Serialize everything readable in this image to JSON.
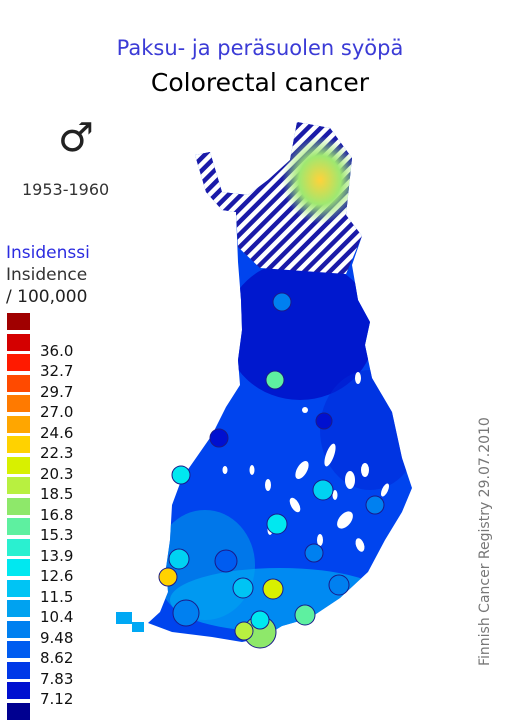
{
  "titles": {
    "finnish": "Paksu- ja peräsuolen syöpä",
    "english": "Colorectal cancer"
  },
  "sex_symbol": "♂",
  "period": "1953-1960",
  "legend": {
    "title_fi": "Insidenssi",
    "title_en": "Insidence",
    "unit": "/ 100,000",
    "bins": [
      {
        "color": "#a00000",
        "label": ""
      },
      {
        "color": "#d40000",
        "label": "36.0"
      },
      {
        "color": "#ff1a00",
        "label": "32.7"
      },
      {
        "color": "#ff4a00",
        "label": "29.7"
      },
      {
        "color": "#ff7a00",
        "label": "27.0"
      },
      {
        "color": "#ffa600",
        "label": "24.6"
      },
      {
        "color": "#ffd200",
        "label": "22.3"
      },
      {
        "color": "#d8f000",
        "label": "20.3"
      },
      {
        "color": "#b8f040",
        "label": "18.5"
      },
      {
        "color": "#8ee86a",
        "label": "16.8"
      },
      {
        "color": "#5ef0a0",
        "label": "15.3"
      },
      {
        "color": "#2af0d0",
        "label": "13.9"
      },
      {
        "color": "#00e8f0",
        "label": "12.6"
      },
      {
        "color": "#00c4f4",
        "label": "11.5"
      },
      {
        "color": "#00a2f0",
        "label": "10.4"
      },
      {
        "color": "#0080f0",
        "label": "9.48"
      },
      {
        "color": "#005cf0",
        "label": "8.62"
      },
      {
        "color": "#0038e8",
        "label": "7.83"
      },
      {
        "color": "#0010d0",
        "label": "7.12"
      },
      {
        "color": "#000090",
        "label": ""
      }
    ]
  },
  "map": {
    "base_color": "#0044ee",
    "region_colors": {
      "north_interior": "#0010c8",
      "east_interior": "#0028d8",
      "south_coast": "#00a8f4",
      "southwest": "#009ae8",
      "lapland_hatch": "#1a1aa8",
      "hotspot_outer": "#9fe870",
      "hotspot_inner": "#ffd23a"
    },
    "cities": [
      {
        "color": "#0080f0"
      },
      {
        "color": "#5ef0a0"
      },
      {
        "color": "#0010d0"
      },
      {
        "color": "#0010d0"
      },
      {
        "color": "#00e8f0"
      },
      {
        "color": "#00d2f2"
      },
      {
        "color": "#00e8f0"
      },
      {
        "color": "#0080f0"
      },
      {
        "color": "#00d2f2"
      },
      {
        "color": "#005cf0"
      },
      {
        "color": "#0080f0"
      },
      {
        "color": "#ffd200"
      },
      {
        "color": "#0080f0"
      },
      {
        "color": "#00c4f4"
      },
      {
        "color": "#d8f000"
      },
      {
        "color": "#5ef0a0"
      },
      {
        "color": "#8ee86a"
      },
      {
        "color": "#0080f0"
      },
      {
        "color": "#00e8f0"
      },
      {
        "color": "#b8f040"
      },
      {
        "color": "#005cf0"
      }
    ]
  },
  "credit": "Finnish Cancer Registry 29.07.2010"
}
